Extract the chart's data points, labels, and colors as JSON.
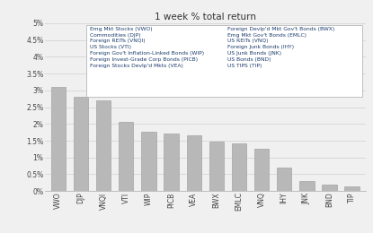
{
  "title": "1 week % total return",
  "categories": [
    "VWO",
    "DJP",
    "VNQI",
    "VTI",
    "WIP",
    "PICB",
    "VEA",
    "BWX",
    "EMLC",
    "VNQ",
    "IHY",
    "JNK",
    "BND",
    "TIP"
  ],
  "values": [
    0.031,
    0.028,
    0.027,
    0.0205,
    0.0178,
    0.0172,
    0.0165,
    0.0148,
    0.0142,
    0.0127,
    0.0069,
    0.003,
    0.0018,
    0.0015
  ],
  "bar_color": "#b8b8b8",
  "bar_edge_color": "#999999",
  "background_color": "#f0f0f0",
  "plot_bg_color": "#f0f0f0",
  "grid_color": "#d0d0d0",
  "title_color": "#333333",
  "tick_color": "#444444",
  "legend_text_color": "#1a3a6b",
  "ylim": [
    0,
    0.05
  ],
  "yticks": [
    0,
    0.005,
    0.01,
    0.015,
    0.02,
    0.025,
    0.03,
    0.035,
    0.04,
    0.045,
    0.05
  ],
  "ytick_labels": [
    "0%",
    "0.5%",
    "1%",
    "1.5%",
    "2%",
    "2.5%",
    "3%",
    "3.5%",
    "4%",
    "4.5%",
    "5%"
  ],
  "legend_col1": [
    "Emg Mkt Stocks (VWO)",
    "Commodities (DJP)",
    "Foreign REITs (VNQI)",
    "US Stocks (VTI)",
    "Foreign Gov't Inflation-Linked Bonds (WIP)",
    "Foreign Invest-Grade Corp Bonds (PICB)",
    "Foreign Stocks Devlp'd Mkts (VEA)"
  ],
  "legend_col2": [
    "Foreign Devlp'd Mkt Gov't Bonds (BWX)",
    "Emg Mkt Gov't Bonds (EMLC)",
    "US REITs (VNQ)",
    "Foreign Junk Bonds (IHY)",
    "US Junk Bonds (JNK)",
    "US Bonds (BND)",
    "US TIPS (TIP)"
  ]
}
